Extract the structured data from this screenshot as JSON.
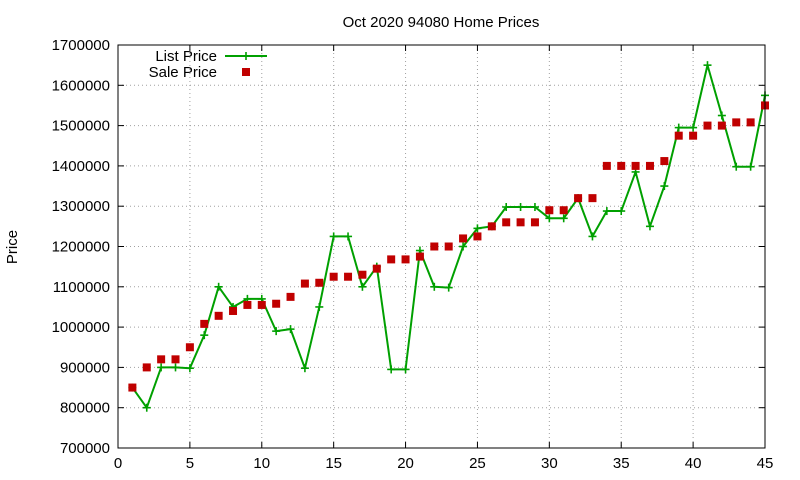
{
  "chart_data": {
    "type": "line",
    "title": "Oct 2020 94080 Home Prices",
    "xlabel": "",
    "ylabel": "Price",
    "xlim": [
      0,
      45
    ],
    "ylim": [
      700000,
      1700000
    ],
    "grid": true,
    "legend_position": "top-left",
    "xticks": [
      0,
      5,
      10,
      15,
      20,
      25,
      30,
      35,
      40,
      45
    ],
    "yticks": [
      700000,
      800000,
      900000,
      1000000,
      1100000,
      1200000,
      1300000,
      1400000,
      1500000,
      1600000,
      1700000
    ],
    "x": [
      1,
      2,
      3,
      4,
      5,
      6,
      7,
      8,
      9,
      10,
      11,
      12,
      13,
      14,
      15,
      16,
      17,
      18,
      19,
      20,
      21,
      22,
      23,
      24,
      25,
      26,
      27,
      28,
      29,
      30,
      31,
      32,
      33,
      34,
      35,
      36,
      37,
      38,
      39,
      40,
      41,
      42,
      43,
      44,
      45
    ],
    "series": [
      {
        "name": "List Price",
        "kind": "line",
        "color": "#00a000",
        "marker": "plus",
        "values": [
          850000,
          800000,
          900000,
          900000,
          898000,
          980000,
          1100000,
          1050000,
          1070000,
          1070000,
          990000,
          995000,
          898000,
          1050000,
          1225000,
          1225000,
          1100000,
          1150000,
          895000,
          895000,
          1190000,
          1100000,
          1098000,
          1200000,
          1245000,
          1250000,
          1298000,
          1298000,
          1298000,
          1270000,
          1270000,
          1320000,
          1225000,
          1288000,
          1288000,
          1385000,
          1250000,
          1350000,
          1495000,
          1495000,
          1650000,
          1525000,
          1398000,
          1398000,
          1575000
        ]
      },
      {
        "name": "Sale Price",
        "kind": "scatter",
        "color": "#c00000",
        "marker": "square",
        "values": [
          850000,
          900000,
          920000,
          920000,
          950000,
          1008000,
          1028000,
          1040000,
          1055000,
          1055000,
          1058000,
          1075000,
          1108000,
          1110000,
          1125000,
          1125000,
          1130000,
          1145000,
          1168000,
          1168000,
          1175000,
          1200000,
          1200000,
          1220000,
          1225000,
          1250000,
          1260000,
          1260000,
          1260000,
          1290000,
          1290000,
          1320000,
          1320000,
          1400000,
          1400000,
          1400000,
          1400000,
          1412000,
          1475000,
          1475000,
          1500000,
          1500000,
          1508000,
          1508000,
          1550000
        ]
      }
    ]
  }
}
